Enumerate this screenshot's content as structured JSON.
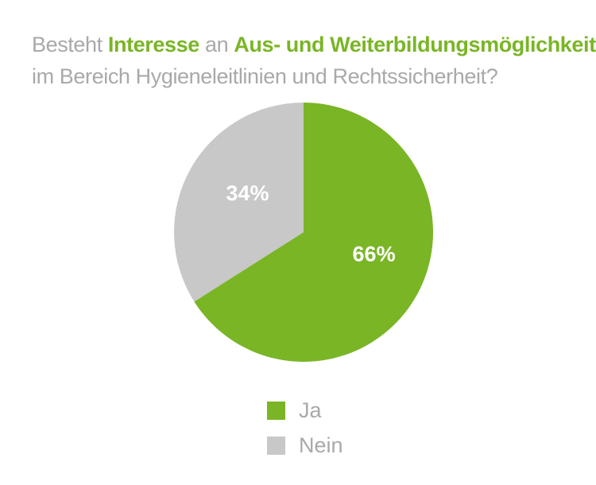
{
  "title": {
    "part1": "Besteht ",
    "part2": "Interesse",
    "part3": " an ",
    "part4": "Aus- und Weiterbildungsmöglichkeiten",
    "line2": "im Bereich Hygieneleitlinien und Rechtssicherheit?"
  },
  "colors": {
    "ja": "#7ab526",
    "nein": "#c8c8c8",
    "title_gray": "#a9a9a9",
    "title_green": "#7ab526"
  },
  "chart_data": {
    "type": "pie",
    "categories": [
      "Ja",
      "Nein"
    ],
    "values": [
      66,
      34
    ],
    "labels": [
      "66%",
      "34%"
    ],
    "start": "12 o'clock, clockwise",
    "legend_placement": "bottom-center"
  },
  "legend": [
    {
      "label": "Ja"
    },
    {
      "label": "Nein"
    }
  ]
}
